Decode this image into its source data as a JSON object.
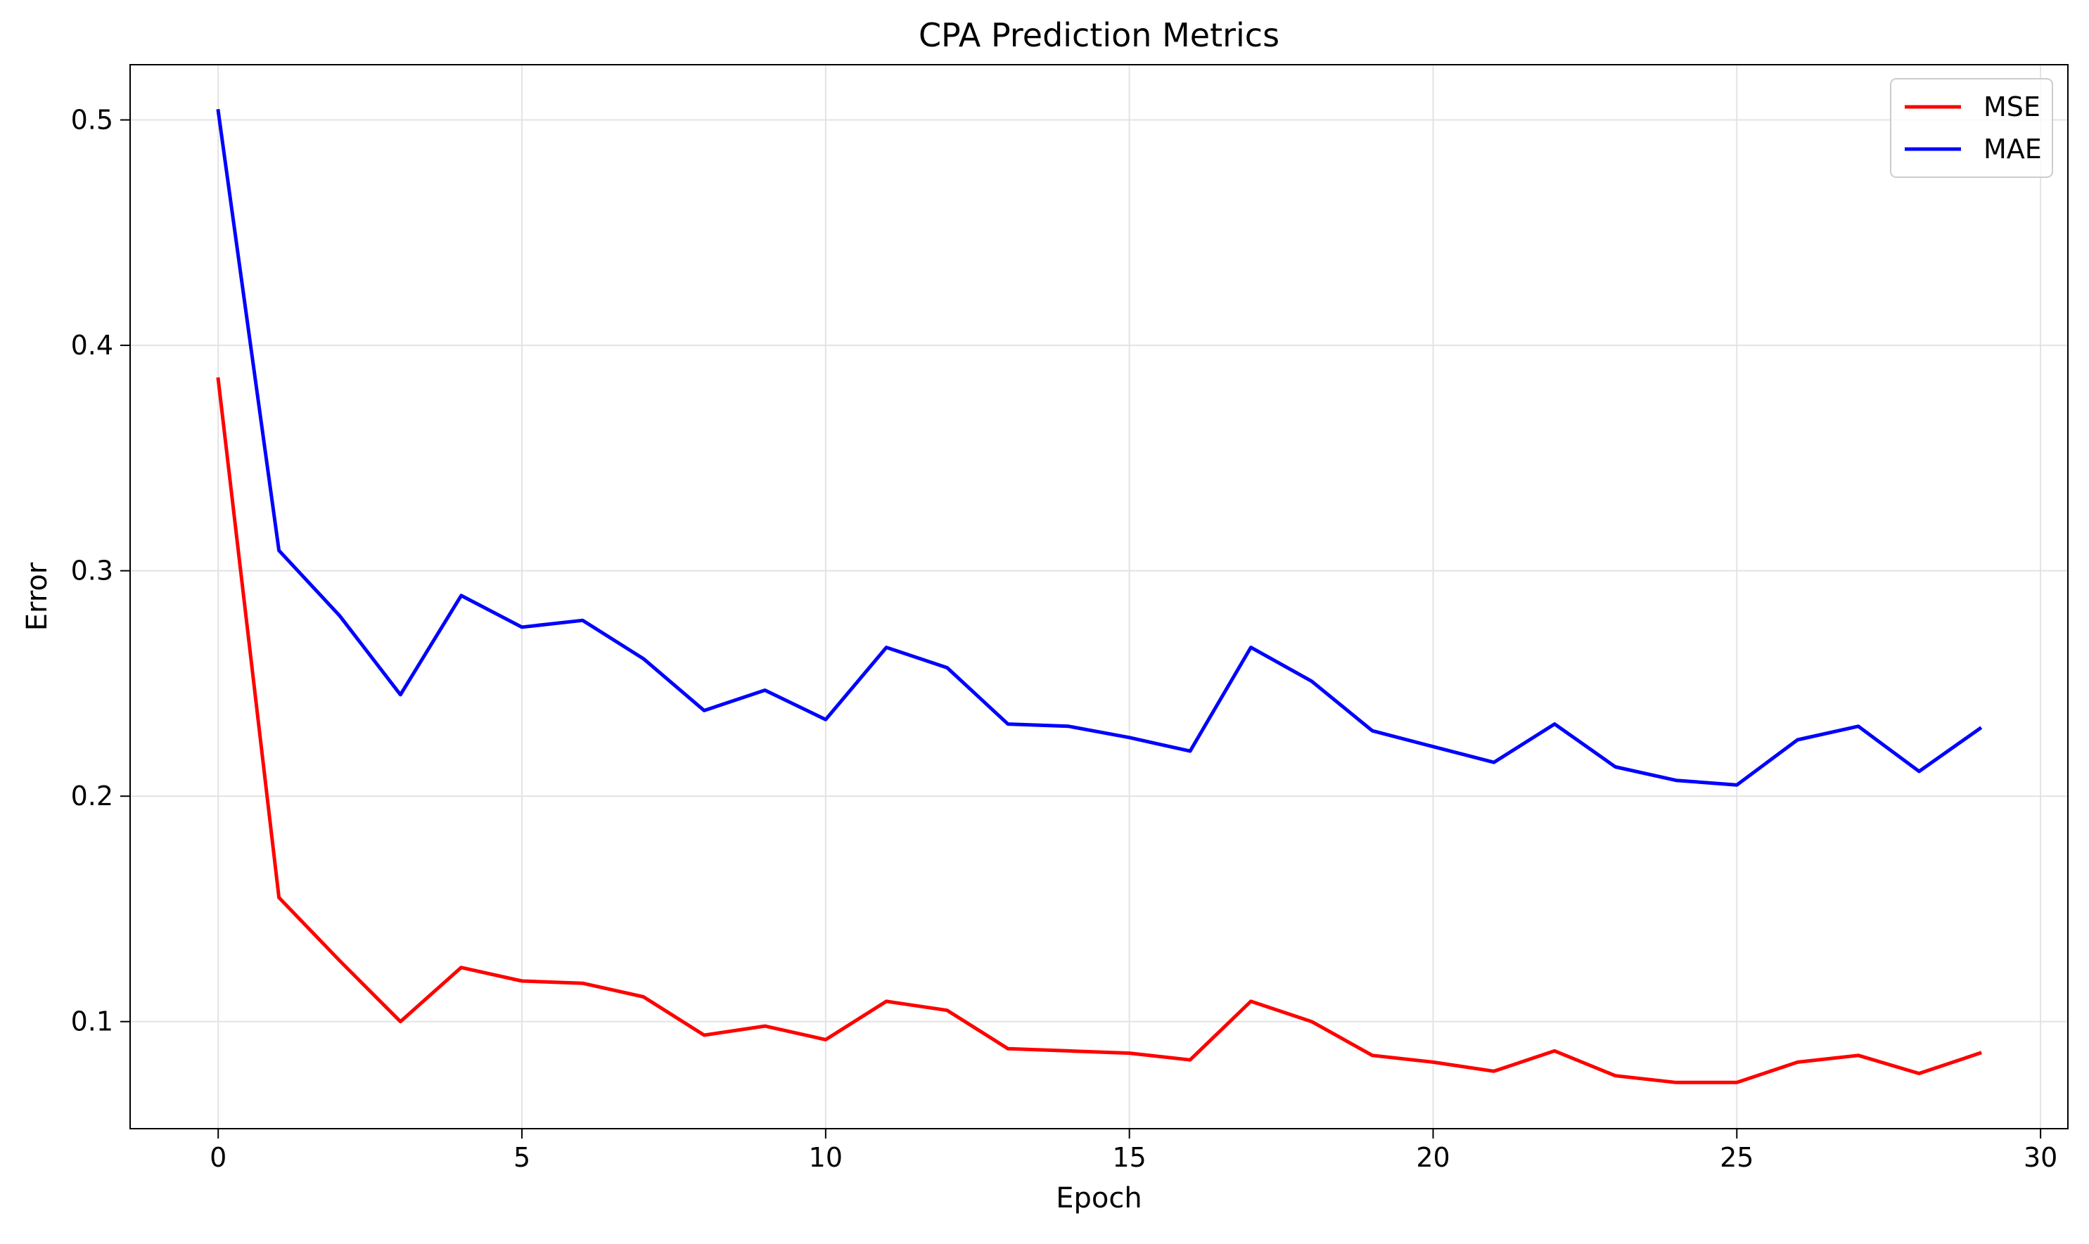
{
  "chart_data": {
    "type": "line",
    "title": "CPA Prediction Metrics",
    "xlabel": "Epoch",
    "ylabel": "Error",
    "xlim": [
      -1.45,
      30.45
    ],
    "ylim": [
      0.0525,
      0.5245
    ],
    "x_ticks": [
      0,
      5,
      10,
      15,
      20,
      25,
      30
    ],
    "y_ticks": [
      0.1,
      0.2,
      0.3,
      0.4,
      0.5
    ],
    "grid": true,
    "legend_position": "top-right",
    "x": [
      0,
      1,
      2,
      3,
      4,
      5,
      6,
      7,
      8,
      9,
      10,
      11,
      12,
      13,
      14,
      15,
      16,
      17,
      18,
      19,
      20,
      21,
      22,
      23,
      24,
      25,
      26,
      27,
      28,
      29
    ],
    "series": [
      {
        "name": "MSE",
        "color": "#ff0000",
        "values": [
          0.385,
          0.155,
          0.127,
          0.1,
          0.124,
          0.118,
          0.117,
          0.111,
          0.094,
          0.098,
          0.092,
          0.109,
          0.105,
          0.088,
          0.087,
          0.086,
          0.083,
          0.109,
          0.1,
          0.085,
          0.082,
          0.078,
          0.087,
          0.076,
          0.073,
          0.073,
          0.082,
          0.085,
          0.077,
          0.086
        ]
      },
      {
        "name": "MAE",
        "color": "#0000ff",
        "values": [
          0.504,
          0.309,
          0.28,
          0.245,
          0.289,
          0.275,
          0.278,
          0.261,
          0.238,
          0.247,
          0.234,
          0.266,
          0.257,
          0.232,
          0.231,
          0.226,
          0.22,
          0.266,
          0.251,
          0.229,
          0.222,
          0.215,
          0.232,
          0.213,
          0.207,
          0.205,
          0.225,
          0.231,
          0.211,
          0.23
        ]
      }
    ]
  }
}
